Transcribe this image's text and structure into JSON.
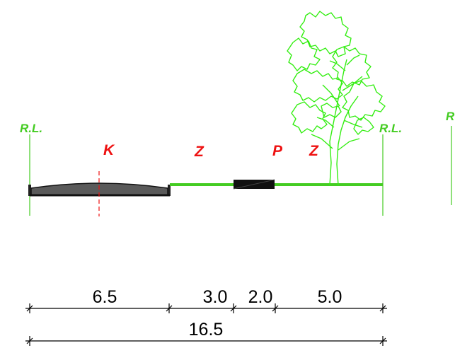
{
  "reference_labels": {
    "left": "R.L.",
    "right": "R.L.",
    "far_right": "R"
  },
  "zones": [
    {
      "id": "k",
      "label": "K"
    },
    {
      "id": "z1",
      "label": "Z"
    },
    {
      "id": "p",
      "label": "P"
    },
    {
      "id": "z2",
      "label": "Z"
    }
  ],
  "dimensions": {
    "segments": [
      "6.5",
      "3.0",
      "2.0",
      "5.0"
    ],
    "total": "16.5"
  },
  "colors": {
    "green_line": "#44cc22",
    "zone_label": "#ee1111",
    "carriageway": "#555555",
    "dimension": "#000000"
  },
  "icons": {
    "tree": "tree-icon"
  }
}
